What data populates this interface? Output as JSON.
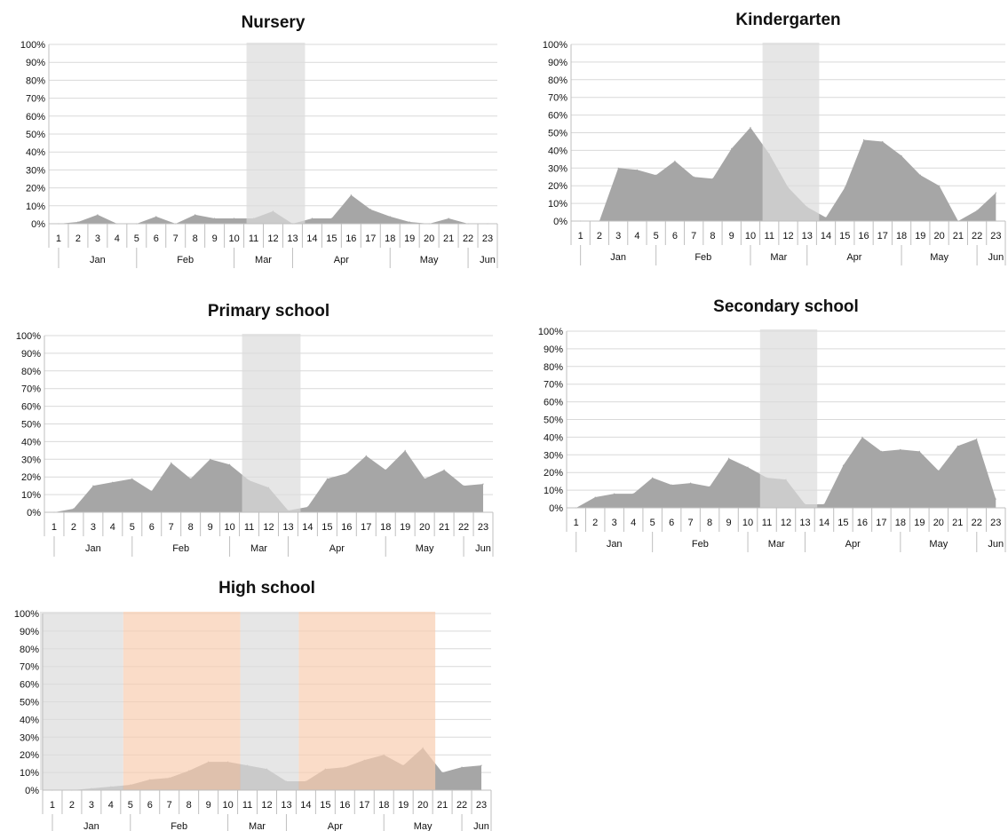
{
  "chart_data": [
    {
      "type": "area",
      "title": "Nursery",
      "x": [
        "1",
        "2",
        "3",
        "4",
        "5",
        "6",
        "7",
        "8",
        "9",
        "10",
        "11",
        "12",
        "13",
        "14",
        "15",
        "16",
        "17",
        "18",
        "19",
        "20",
        "21",
        "22",
        "23"
      ],
      "months": [
        {
          "label": "Jan",
          "from": 1,
          "to": 4
        },
        {
          "label": "Feb",
          "from": 5,
          "to": 9
        },
        {
          "label": "Mar",
          "from": 10,
          "to": 12
        },
        {
          "label": "Apr",
          "from": 13,
          "to": 17
        },
        {
          "label": "May",
          "from": 18,
          "to": 21
        },
        {
          "label": "Jun",
          "from": 22,
          "to": 23
        }
      ],
      "ylim": [
        0,
        100
      ],
      "yticks": [
        "0%",
        "10%",
        "20%",
        "30%",
        "40%",
        "50%",
        "60%",
        "70%",
        "80%",
        "90%",
        "100%"
      ],
      "values": [
        0,
        1,
        5,
        0,
        0,
        4,
        0,
        5,
        3,
        3,
        3,
        7,
        0,
        3,
        3,
        16,
        8,
        4,
        1,
        0,
        3,
        0,
        0
      ],
      "shaded": [
        {
          "from": 11,
          "to": 13,
          "color": "#dcdcdc"
        }
      ],
      "grid": true,
      "colors": {
        "area": "#a6a6a6",
        "grid": "#d9d9d9"
      }
    },
    {
      "type": "area",
      "title": "Kindergarten",
      "x": [
        "1",
        "2",
        "3",
        "4",
        "5",
        "6",
        "7",
        "8",
        "9",
        "10",
        "11",
        "12",
        "13",
        "14",
        "15",
        "16",
        "17",
        "18",
        "19",
        "20",
        "21",
        "22",
        "23"
      ],
      "months": [
        {
          "label": "Jan",
          "from": 1,
          "to": 4
        },
        {
          "label": "Feb",
          "from": 5,
          "to": 9
        },
        {
          "label": "Mar",
          "from": 10,
          "to": 12
        },
        {
          "label": "Apr",
          "from": 13,
          "to": 17
        },
        {
          "label": "May",
          "from": 18,
          "to": 21
        },
        {
          "label": "Jun",
          "from": 22,
          "to": 23
        }
      ],
      "ylim": [
        0,
        100
      ],
      "yticks": [
        "0%",
        "10%",
        "20%",
        "30%",
        "40%",
        "50%",
        "60%",
        "70%",
        "80%",
        "90%",
        "100%"
      ],
      "values": [
        0,
        0,
        30,
        29,
        26,
        34,
        25,
        24,
        41,
        53,
        38,
        19,
        8,
        2,
        19,
        46,
        45,
        37,
        26,
        20,
        0,
        6,
        16
      ],
      "shaded": [
        {
          "from": 11,
          "to": 13,
          "color": "#dcdcdc"
        }
      ],
      "grid": true,
      "colors": {
        "area": "#a6a6a6",
        "grid": "#d9d9d9"
      }
    },
    {
      "type": "area",
      "title": "Primary school",
      "x": [
        "1",
        "2",
        "3",
        "4",
        "5",
        "6",
        "7",
        "8",
        "9",
        "10",
        "11",
        "12",
        "13",
        "14",
        "15",
        "16",
        "17",
        "18",
        "19",
        "20",
        "21",
        "22",
        "23"
      ],
      "months": [
        {
          "label": "Jan",
          "from": 1,
          "to": 4
        },
        {
          "label": "Feb",
          "from": 5,
          "to": 9
        },
        {
          "label": "Mar",
          "from": 10,
          "to": 12
        },
        {
          "label": "Apr",
          "from": 13,
          "to": 17
        },
        {
          "label": "May",
          "from": 18,
          "to": 21
        },
        {
          "label": "Jun",
          "from": 22,
          "to": 23
        }
      ],
      "ylim": [
        0,
        100
      ],
      "yticks": [
        "0%",
        "10%",
        "20%",
        "30%",
        "40%",
        "50%",
        "60%",
        "70%",
        "80%",
        "90%",
        "100%"
      ],
      "values": [
        0,
        2,
        15,
        17,
        19,
        12,
        28,
        19,
        30,
        27,
        18,
        14,
        1,
        3,
        19,
        22,
        32,
        24,
        35,
        19,
        24,
        15,
        16
      ],
      "shaded": [
        {
          "from": 11,
          "to": 13,
          "color": "#dcdcdc"
        }
      ],
      "grid": true,
      "colors": {
        "area": "#a6a6a6",
        "grid": "#d9d9d9"
      }
    },
    {
      "type": "area",
      "title": "Secondary school",
      "x": [
        "1",
        "2",
        "3",
        "4",
        "5",
        "6",
        "7",
        "8",
        "9",
        "10",
        "11",
        "12",
        "13",
        "14",
        "15",
        "16",
        "17",
        "18",
        "19",
        "20",
        "21",
        "22",
        "23"
      ],
      "months": [
        {
          "label": "Jan",
          "from": 1,
          "to": 4
        },
        {
          "label": "Feb",
          "from": 5,
          "to": 9
        },
        {
          "label": "Mar",
          "from": 10,
          "to": 12
        },
        {
          "label": "Apr",
          "from": 13,
          "to": 17
        },
        {
          "label": "May",
          "from": 18,
          "to": 21
        },
        {
          "label": "Jun",
          "from": 22,
          "to": 23
        }
      ],
      "ylim": [
        0,
        100
      ],
      "yticks": [
        "0%",
        "10%",
        "20%",
        "30%",
        "40%",
        "50%",
        "60%",
        "70%",
        "80%",
        "90%",
        "100%"
      ],
      "values": [
        0,
        6,
        8,
        8,
        17,
        13,
        14,
        12,
        28,
        23,
        17,
        16,
        2,
        2,
        24,
        40,
        32,
        33,
        32,
        21,
        35,
        39,
        5
      ],
      "shaded": [
        {
          "from": 11,
          "to": 13,
          "color": "#dcdcdc"
        }
      ],
      "grid": true,
      "colors": {
        "area": "#a6a6a6",
        "grid": "#d9d9d9"
      }
    },
    {
      "type": "area",
      "title": "High school",
      "x": [
        "1",
        "2",
        "3",
        "4",
        "5",
        "6",
        "7",
        "8",
        "9",
        "10",
        "11",
        "12",
        "13",
        "14",
        "15",
        "16",
        "17",
        "18",
        "19",
        "20",
        "21",
        "22",
        "23"
      ],
      "months": [
        {
          "label": "Jan",
          "from": 1,
          "to": 4
        },
        {
          "label": "Feb",
          "from": 5,
          "to": 9
        },
        {
          "label": "Mar",
          "from": 10,
          "to": 12
        },
        {
          "label": "Apr",
          "from": 13,
          "to": 17
        },
        {
          "label": "May",
          "from": 18,
          "to": 21
        },
        {
          "label": "Jun",
          "from": 22,
          "to": 23
        }
      ],
      "ylim": [
        0,
        100
      ],
      "yticks": [
        "0%",
        "10%",
        "20%",
        "30%",
        "40%",
        "50%",
        "60%",
        "70%",
        "80%",
        "90%",
        "100%"
      ],
      "values": [
        0,
        0,
        1,
        2,
        3,
        6,
        7,
        11,
        16,
        16,
        14,
        12,
        5,
        5,
        12,
        13,
        17,
        20,
        14,
        24,
        10,
        13,
        14
      ],
      "shaded": [
        {
          "from": 1,
          "to": 4,
          "color": "#dcdcdc"
        },
        {
          "from": 5,
          "to": 10,
          "color": "#f8cdb0"
        },
        {
          "from": 11,
          "to": 13,
          "color": "#dcdcdc"
        },
        {
          "from": 14,
          "to": 20,
          "color": "#f8cdb0"
        }
      ],
      "grid": true,
      "colors": {
        "area": "#a6a6a6",
        "grid": "#d9d9d9"
      }
    }
  ]
}
